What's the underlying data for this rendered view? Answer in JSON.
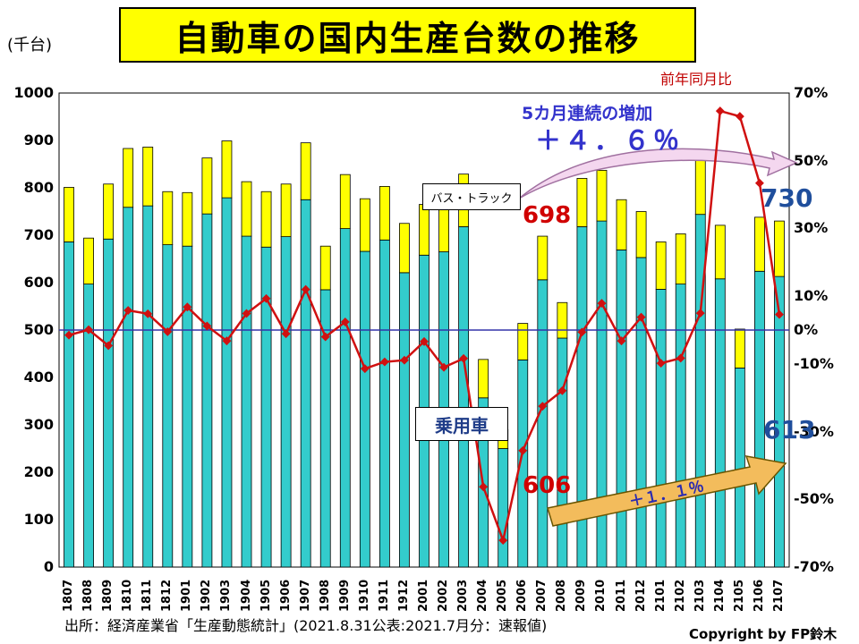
{
  "header": {
    "title": "自動車の国内生産台数の推移",
    "units": "(千台)"
  },
  "annotations": {
    "yoy_label": "前年同月比",
    "consecutive": "5カ月連続の増加",
    "consecutive_pct": "＋４．６％",
    "bus_truck": "バス・トラック",
    "passenger": "乗用車",
    "arrow_pct": "＋１．１％",
    "val_698": "698",
    "val_606": "606",
    "val_730": "730",
    "val_613": "613"
  },
  "footer": {
    "source": "出所：経済産業省「生産動態統計」(2021.8.31公表:2021.7月分：速報値)",
    "copyright": "Copyright by FP鈴木"
  },
  "colors": {
    "passenger": "#33cccc",
    "bus_truck": "#ffff00",
    "yoy_line": "#d01010",
    "zero_line": "#3333aa",
    "arrow_fill": "#f3bc5c"
  },
  "chart_data": {
    "type": "bar",
    "stacked": true,
    "title": "自動車の国内生産台数の推移",
    "ylabel": "(千台)",
    "ylim": [
      0,
      1000
    ],
    "y_ticks": [
      "0",
      "100",
      "200",
      "300",
      "400",
      "500",
      "600",
      "700",
      "800",
      "900",
      "1000"
    ],
    "y2lim": [
      -70,
      70
    ],
    "y2_ticks": [
      "-70%",
      "-50%",
      "-30%",
      "-10%",
      "0%",
      "10%",
      "30%",
      "50%",
      "70%"
    ],
    "legend_position": "none",
    "grid": false,
    "categories": [
      "1807",
      "1808",
      "1809",
      "1810",
      "1811",
      "1812",
      "1901",
      "1902",
      "1903",
      "1904",
      "1905",
      "1906",
      "1907",
      "1908",
      "1909",
      "1910",
      "1911",
      "1912",
      "2001",
      "2002",
      "2003",
      "2004",
      "2005",
      "2006",
      "2007",
      "2008",
      "2009",
      "2010",
      "2011",
      "2012",
      "2101",
      "2102",
      "2103",
      "2104",
      "2105",
      "2106",
      "2107"
    ],
    "series": [
      {
        "name": "乗用車",
        "axis": "left",
        "values": [
          686,
          597,
          692,
          759,
          762,
          680,
          677,
          745,
          779,
          698,
          675,
          697,
          775,
          585,
          714,
          666,
          690,
          621,
          658,
          665,
          718,
          357,
          250,
          437,
          606,
          483,
          718,
          730,
          669,
          653,
          586,
          597,
          744,
          608,
          420,
          624,
          613
        ]
      },
      {
        "name": "バス・トラック",
        "axis": "left",
        "values": [
          115,
          97,
          116,
          124,
          124,
          112,
          113,
          118,
          120,
          115,
          117,
          111,
          120,
          92,
          114,
          111,
          113,
          104,
          107,
          107,
          111,
          81,
          40,
          77,
          92,
          75,
          102,
          107,
          106,
          97,
          100,
          106,
          128,
          113,
          82,
          114,
          117
        ]
      },
      {
        "name": "前年同月比",
        "axis": "right",
        "type": "line",
        "values": [
          -1.5,
          0.1,
          -4.6,
          5.8,
          4.8,
          -0.5,
          6.8,
          1.2,
          -3.2,
          4.9,
          9.3,
          -1.1,
          12.0,
          -2.0,
          2.4,
          -11.4,
          -9.4,
          -8.9,
          -3.4,
          -11.0,
          -8.4,
          -46.3,
          -62.1,
          -35.6,
          -22.5,
          -17.9,
          -0.6,
          7.9,
          -3.2,
          3.8,
          -9.8,
          -8.3,
          5.0,
          64.7,
          63.1,
          43.4,
          4.6
        ]
      }
    ]
  }
}
